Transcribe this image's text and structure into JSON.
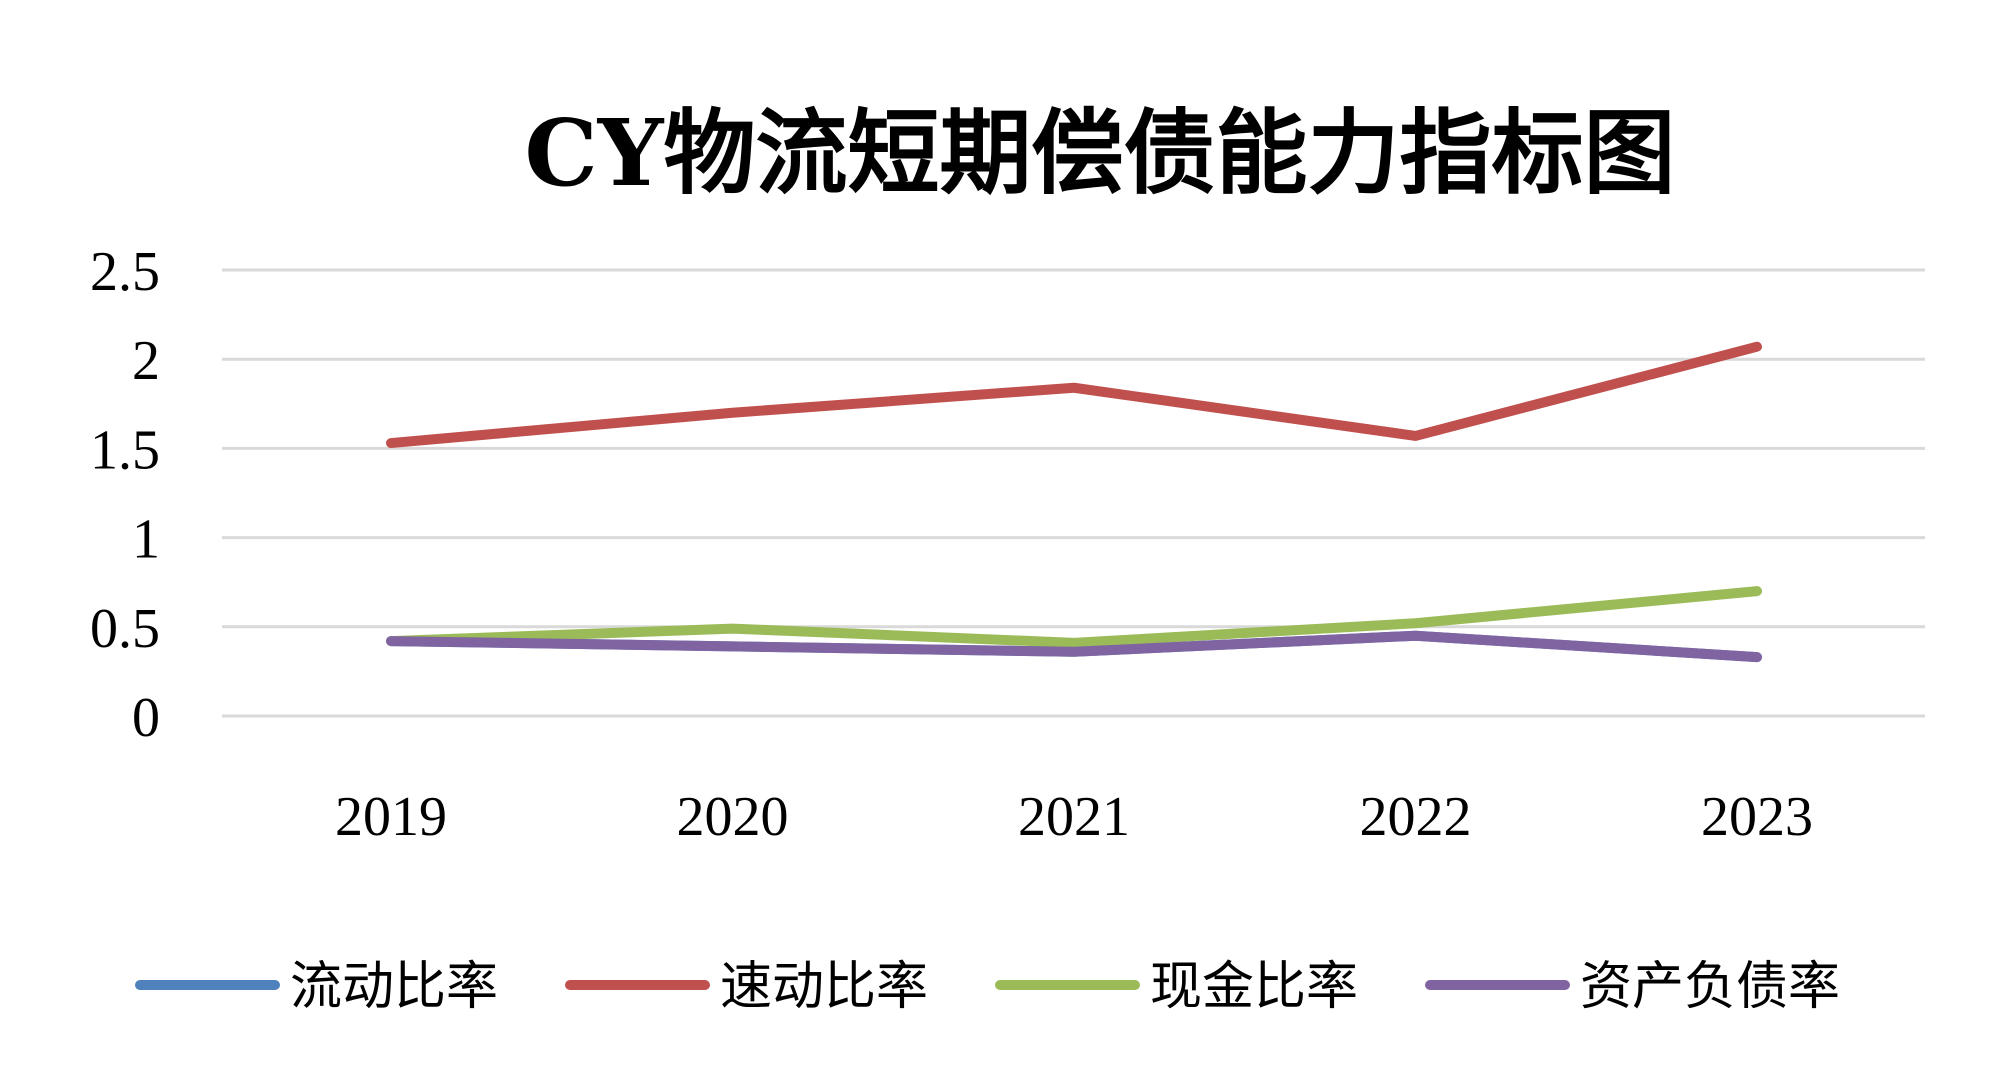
{
  "chart_data": {
    "type": "line",
    "title": "CY物流短期偿债能力指标图",
    "xlabel": "",
    "ylabel": "",
    "categories": [
      "2019",
      "2020",
      "2021",
      "2022",
      "2023"
    ],
    "yticks": [
      "0",
      "0.5",
      "1",
      "1.5",
      "2",
      "2.5"
    ],
    "ylim": [
      0,
      2.5
    ],
    "grid": true,
    "legend_position": "bottom",
    "series": [
      {
        "name": "流动比率",
        "color": "#4F81BD",
        "values": [
          0.42,
          0.39,
          0.36,
          0.45,
          0.33
        ]
      },
      {
        "name": "速动比率",
        "color": "#C0504D",
        "values": [
          1.53,
          1.7,
          1.84,
          1.57,
          2.07
        ]
      },
      {
        "name": "现金比率",
        "color": "#9BBB59",
        "values": [
          0.42,
          0.49,
          0.41,
          0.52,
          0.7
        ]
      },
      {
        "name": "资产负债率",
        "color": "#8064A2",
        "values": [
          0.42,
          0.39,
          0.36,
          0.45,
          0.33
        ]
      }
    ]
  }
}
